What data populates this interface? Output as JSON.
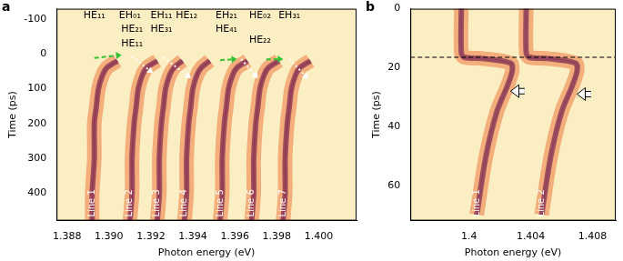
{
  "chart_data": [
    {
      "panel": "a",
      "type": "line",
      "x_label": "Photon energy (eV)",
      "y_label": "Time (ps)",
      "xlim": [
        1.3875,
        1.4018
      ],
      "xticks": [
        1.388,
        {
          "value": 1.39,
          "label": "1.390"
        },
        1.392,
        1.394,
        1.396,
        1.398,
        {
          "value": 1.4,
          "label": "1.400"
        }
      ],
      "ylim": [
        480,
        -130
      ],
      "yticks": [
        -100,
        0,
        100,
        200,
        300,
        400
      ],
      "grid": false,
      "series": [
        {
          "name": "Line 1",
          "color": "#4b1f7a",
          "x": [
            1.3904,
            1.3899,
            1.3897,
            1.3895,
            1.3894,
            1.3893,
            1.3893,
            1.3892,
            1.3892
          ],
          "values": [
            20,
            40,
            60,
            100,
            150,
            200,
            300,
            400,
            480
          ]
        },
        {
          "name": "Line 2",
          "color": "#4b1f7a",
          "x": [
            1.3923,
            1.3918,
            1.3916,
            1.3914,
            1.3913,
            1.3912,
            1.3911,
            1.3911,
            1.391
          ],
          "values": [
            20,
            40,
            60,
            100,
            150,
            200,
            300,
            400,
            480
          ]
        },
        {
          "name": "Line 3",
          "color": "#4b1f7a",
          "x": [
            1.3935,
            1.3931,
            1.3929,
            1.3927,
            1.3926,
            1.3925,
            1.3924,
            1.3924,
            1.3923
          ],
          "values": [
            20,
            40,
            60,
            100,
            150,
            200,
            300,
            400,
            480
          ]
        },
        {
          "name": "Line 4",
          "color": "#4b1f7a",
          "x": [
            1.3948,
            1.3944,
            1.3942,
            1.394,
            1.3939,
            1.3938,
            1.3937,
            1.3937,
            1.3936
          ],
          "values": [
            20,
            40,
            60,
            100,
            150,
            200,
            300,
            400,
            480
          ]
        },
        {
          "name": "Line 5",
          "color": "#4b1f7a",
          "x": [
            1.3966,
            1.3961,
            1.3959,
            1.3957,
            1.3956,
            1.3955,
            1.3954,
            1.3954,
            1.3953
          ],
          "values": [
            20,
            40,
            60,
            100,
            150,
            200,
            300,
            400,
            480
          ]
        },
        {
          "name": "Line 6",
          "color": "#4b1f7a",
          "x": [
            1.3981,
            1.3976,
            1.3974,
            1.3972,
            1.3971,
            1.397,
            1.3969,
            1.3969,
            1.3968
          ],
          "values": [
            20,
            40,
            60,
            100,
            150,
            200,
            300,
            400,
            480
          ]
        },
        {
          "name": "Line 7",
          "color": "#4b1f7a",
          "x": [
            1.3996,
            1.3991,
            1.3989,
            1.3987,
            1.3986,
            1.3985,
            1.3984,
            1.3984,
            1.3983
          ],
          "values": [
            20,
            40,
            60,
            100,
            150,
            200,
            300,
            400,
            480
          ]
        }
      ],
      "annotations": [
        {
          "text": "HE₁₁",
          "x": 1.3893,
          "y": -110
        },
        {
          "text": "EH₀₁",
          "x": 1.391,
          "y": -110
        },
        {
          "text": "EH₁₁",
          "x": 1.3925,
          "y": -110
        },
        {
          "text": "HE₁₂",
          "x": 1.3937,
          "y": -110
        },
        {
          "text": "EH₂₁",
          "x": 1.3956,
          "y": -110
        },
        {
          "text": "HE₀₂",
          "x": 1.3972,
          "y": -110
        },
        {
          "text": "EH₃₁",
          "x": 1.3986,
          "y": -110
        },
        {
          "text": "HE₂₁",
          "x": 1.3911,
          "y": -70
        },
        {
          "text": "HE₃₁",
          "x": 1.3925,
          "y": -70
        },
        {
          "text": "HE₄₁",
          "x": 1.3956,
          "y": -70
        },
        {
          "text": "HE₂₂",
          "x": 1.3972,
          "y": -40
        },
        {
          "text": "HE₁₁",
          "x": 1.3911,
          "y": -30
        }
      ],
      "arrows": [
        {
          "from": [
            1.3893,
            12
          ],
          "to": [
            1.3906,
            3
          ],
          "color": "#33c233",
          "line_style": "dashed"
        },
        {
          "from": [
            1.3911,
            8
          ],
          "to": [
            1.3921,
            55
          ],
          "color": "#ffffff",
          "line_style": "dotted"
        },
        {
          "from": [
            1.3926,
            10
          ],
          "to": [
            1.3939,
            70
          ],
          "color": "#ffffff",
          "line_style": "dotted"
        },
        {
          "from": [
            1.3953,
            18
          ],
          "to": [
            1.3961,
            15
          ],
          "color": "#33c233",
          "line_style": "dashed"
        },
        {
          "from": [
            1.3963,
            15
          ],
          "to": [
            1.3971,
            70
          ],
          "color": "#ffffff",
          "line_style": "dotted"
        },
        {
          "from": [
            1.3975,
            16
          ],
          "to": [
            1.3983,
            15
          ],
          "color": "#33c233",
          "line_style": "dashed"
        },
        {
          "from": [
            1.3986,
            15
          ],
          "to": [
            1.3995,
            72
          ],
          "color": "#ffffff",
          "line_style": "dotted"
        }
      ]
    },
    {
      "panel": "b",
      "type": "line",
      "x_label": "Photon energy (eV)",
      "y_label": "Time (ps)",
      "xlim": [
        1.3962,
        1.4095
      ],
      "xticks": [
        1.4,
        1.404,
        1.408
      ],
      "ylim": [
        72,
        0
      ],
      "yticks": [
        0,
        20,
        40,
        60
      ],
      "grid": false,
      "series": [
        {
          "name": "Line 1",
          "color": "#3b8fe0",
          "x": [
            1.3995,
            1.3995,
            1.3997,
            1.401,
            1.4027,
            1.4028,
            1.4025,
            1.4018,
            1.4011,
            1.4005
          ],
          "values": [
            0,
            15,
            16.5,
            17,
            18.5,
            21,
            26,
            35,
            50,
            70
          ]
        },
        {
          "name": "Line 2",
          "color": "#3b8fe0",
          "x": [
            1.4037,
            1.4037,
            1.4039,
            1.4052,
            1.4069,
            1.407,
            1.4067,
            1.406,
            1.4053,
            1.4047
          ],
          "values": [
            0,
            15,
            16.5,
            17,
            18.5,
            21,
            26,
            35,
            50,
            70
          ]
        }
      ],
      "reference_lines": [
        {
          "y": 16.5,
          "line_style": "dashed",
          "color": "#000000"
        }
      ],
      "arrows": [
        {
          "from": [
            1.4036,
            28
          ],
          "to": [
            1.4027,
            28
          ],
          "color": "#ffffff",
          "line_style": "solid"
        },
        {
          "from": [
            1.4079,
            29
          ],
          "to": [
            1.407,
            29
          ],
          "color": "#ffffff",
          "line_style": "solid"
        }
      ]
    }
  ]
}
